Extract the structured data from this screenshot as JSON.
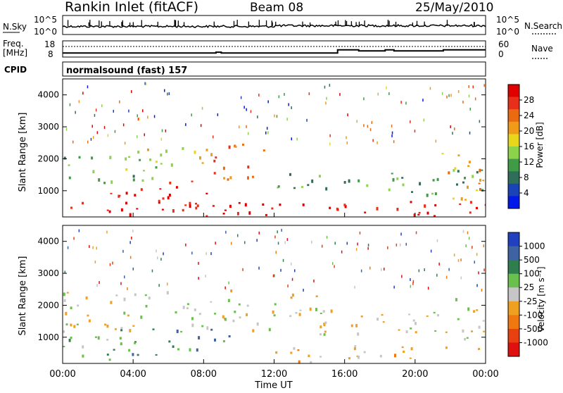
{
  "header": {
    "station": "Rankin Inlet (fitACF)",
    "beam": "Beam 08",
    "date": "25/May/2010"
  },
  "noise_panel": {
    "left_label": "N.Sky",
    "right_label": "N.Search",
    "left_ticks": [
      "10^5",
      "10^0"
    ],
    "right_ticks": [
      "10^5",
      "10^0"
    ]
  },
  "freq_panel": {
    "left_label_line1": "Freq.",
    "left_label_line2": "[MHz]",
    "right_label": "Nave",
    "left_ticks": [
      "18",
      "8"
    ],
    "right_ticks": [
      "60",
      "0"
    ]
  },
  "cpid": {
    "label": "CPID",
    "value": "normalsound (fast) 157"
  },
  "x_axis": {
    "ticks": [
      "00:00",
      "04:00",
      "08:00",
      "12:00",
      "16:00",
      "20:00",
      "00:00"
    ],
    "label": "Time UT"
  },
  "colors": {
    "power": [
      "#0018e8",
      "#1b43b8",
      "#2f6f5a",
      "#3f9b46",
      "#8cd24a",
      "#e8d61c",
      "#f09a1a",
      "#ea6a10",
      "#e82f1a",
      "#e00000"
    ],
    "velocity": [
      "#2040c0",
      "#3e62a2",
      "#2f7f4e",
      "#6ac04c",
      "#c6c6c6",
      "#f0a020",
      "#f07810",
      "#e84010",
      "#e01010"
    ]
  },
  "chart_data": [
    {
      "type": "line",
      "name": "noise",
      "x_range_hours": [
        0,
        24
      ],
      "y_scale": "log",
      "ylim": [
        "10^0",
        "10^5"
      ]
    },
    {
      "type": "line",
      "name": "frequency",
      "x_range_hours": [
        0,
        24
      ],
      "ylim": [
        8,
        18
      ],
      "series": [
        {
          "x": [
            0.0,
            8.7,
            8.7,
            9.0,
            9.0,
            15.6,
            15.6,
            16.8,
            16.8,
            18.3,
            18.3,
            18.8,
            18.8,
            21.6,
            21.6,
            24.0
          ],
          "y": [
            10.5,
            10.5,
            11.0,
            11.0,
            10.5,
            10.5,
            12.5,
            12.5,
            11.8,
            11.8,
            12.5,
            12.5,
            11.8,
            11.8,
            12.5,
            12.5
          ]
        }
      ]
    },
    {
      "type": "heatmap",
      "name": "power",
      "ylabel": "Slant Range [km]",
      "xlabel": "Time UT",
      "ylim": [
        180,
        4500
      ],
      "y_ticks": [
        1000,
        2000,
        3000,
        4000
      ],
      "colorbar": {
        "label": "Power [dB]",
        "ticks": [
          "4",
          "8",
          "12",
          "16",
          "20",
          "24",
          "28"
        ]
      },
      "regions": [
        {
          "t": [
            0.0,
            24.0
          ],
          "r": [
            200,
            700
          ],
          "level": 9
        },
        {
          "t": [
            0.0,
            5.5
          ],
          "r": [
            1200,
            2100
          ],
          "level": 3
        },
        {
          "t": [
            3.5,
            9.0
          ],
          "r": [
            1700,
            2400
          ],
          "level": 5
        },
        {
          "t": [
            2.5,
            8.5
          ],
          "r": [
            400,
            1400
          ],
          "level": 9
        },
        {
          "t": [
            8.5,
            11.5
          ],
          "r": [
            1200,
            2500
          ],
          "level": 7
        },
        {
          "t": [
            11.5,
            15.5
          ],
          "r": [
            1100,
            1700
          ],
          "level": 3
        },
        {
          "t": [
            15.5,
            24.0
          ],
          "r": [
            900,
            1700
          ],
          "level": 3
        },
        {
          "t": [
            21.5,
            24.0
          ],
          "r": [
            600,
            2300
          ],
          "level": 6
        }
      ]
    },
    {
      "type": "heatmap",
      "name": "velocity",
      "ylabel": "Slant Range [km]",
      "xlabel": "Time UT",
      "ylim": [
        180,
        4500
      ],
      "y_ticks": [
        1000,
        2000,
        3000,
        4000
      ],
      "colorbar": {
        "label": "Velocity [m s⁻¹]",
        "ticks": [
          "1000",
          "500",
          "100",
          "25",
          "-25",
          "-100",
          "-500",
          "-1000"
        ]
      },
      "regions": [
        {
          "t": [
            0.0,
            10.5
          ],
          "r": [
            1200,
            2500
          ],
          "level": 4
        },
        {
          "t": [
            0.0,
            3.0
          ],
          "r": [
            300,
            1300
          ],
          "level": 3
        },
        {
          "t": [
            3.0,
            9.5
          ],
          "r": [
            400,
            1300
          ],
          "level": 2
        },
        {
          "t": [
            10.5,
            15.5
          ],
          "r": [
            1100,
            2400
          ],
          "level": 4
        },
        {
          "t": [
            12.0,
            16.0
          ],
          "r": [
            200,
            700
          ],
          "level": 5
        },
        {
          "t": [
            15.5,
            22.0
          ],
          "r": [
            1100,
            1800
          ],
          "level": 4
        },
        {
          "t": [
            16.0,
            22.0
          ],
          "r": [
            300,
            800
          ],
          "level": 5
        },
        {
          "t": [
            21.5,
            24.0
          ],
          "r": [
            500,
            2300
          ],
          "level": 4
        }
      ]
    }
  ]
}
